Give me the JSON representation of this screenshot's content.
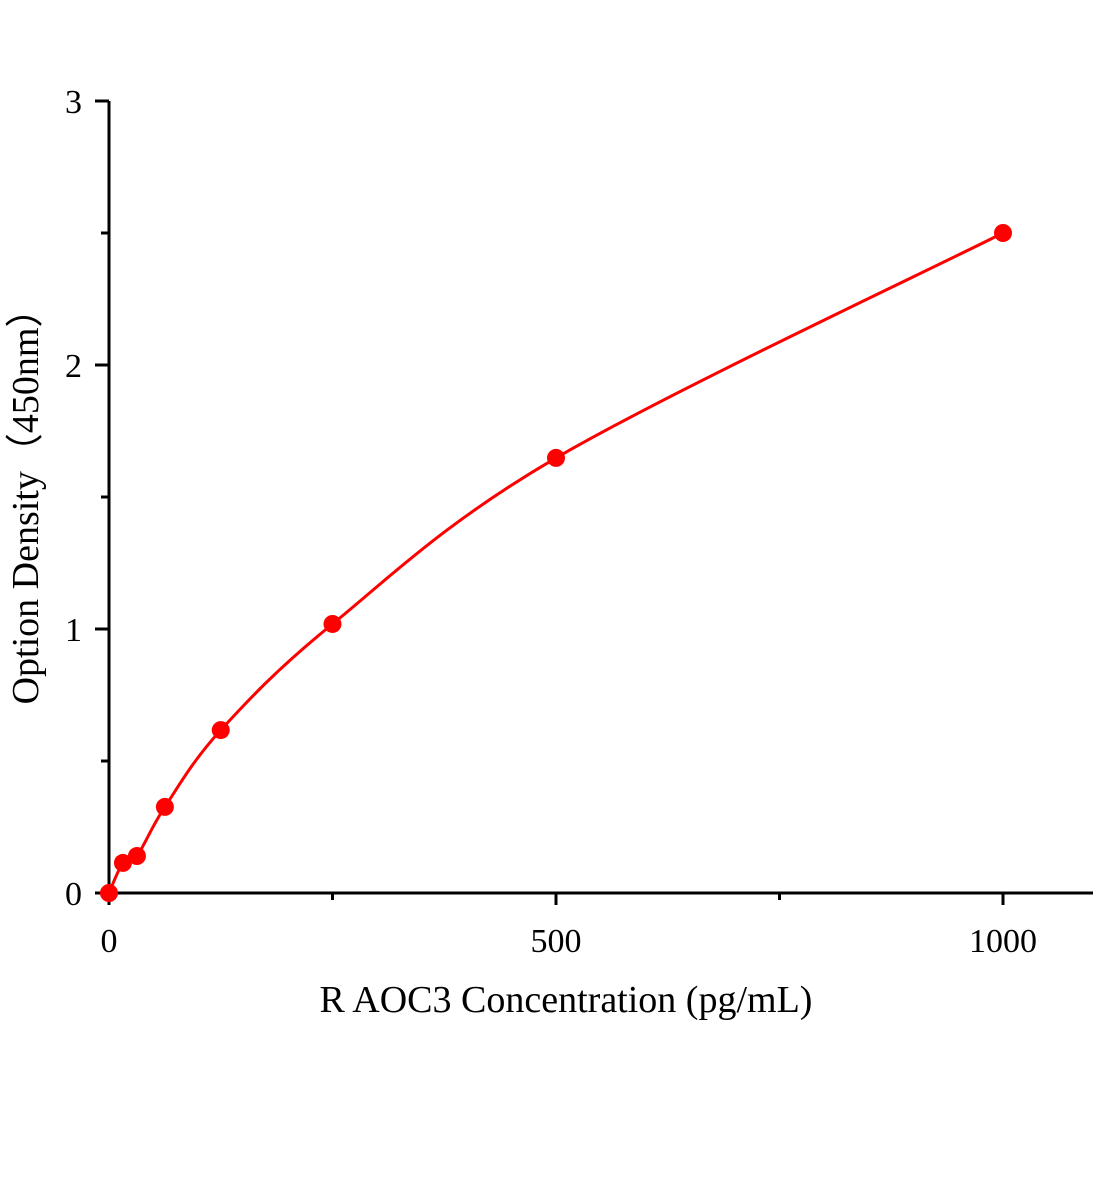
{
  "chart_data": {
    "type": "scatter",
    "title": "",
    "xlabel": "R AOC3  Concentration (pg/mL)",
    "ylabel": "Option Density（450nm）",
    "xlim": [
      0,
      1100
    ],
    "ylim": [
      0,
      3
    ],
    "x_ticks": [
      0,
      500,
      1000
    ],
    "x_minor_ticks": [
      250,
      750
    ],
    "y_ticks": [
      0,
      1,
      2,
      3
    ],
    "y_minor_ticks": [
      0.5,
      1.5,
      2.5
    ],
    "grid": false,
    "legend": "none",
    "color": "#ff0000",
    "series": [
      {
        "x": [
          0,
          15.6,
          31.25,
          62.5,
          125,
          250,
          500,
          1000
        ],
        "y": [
          0,
          0.114,
          0.14,
          0.326,
          0.617,
          1.019,
          1.648,
          2.5
        ],
        "marker": "circle",
        "fit_line": true
      }
    ]
  }
}
